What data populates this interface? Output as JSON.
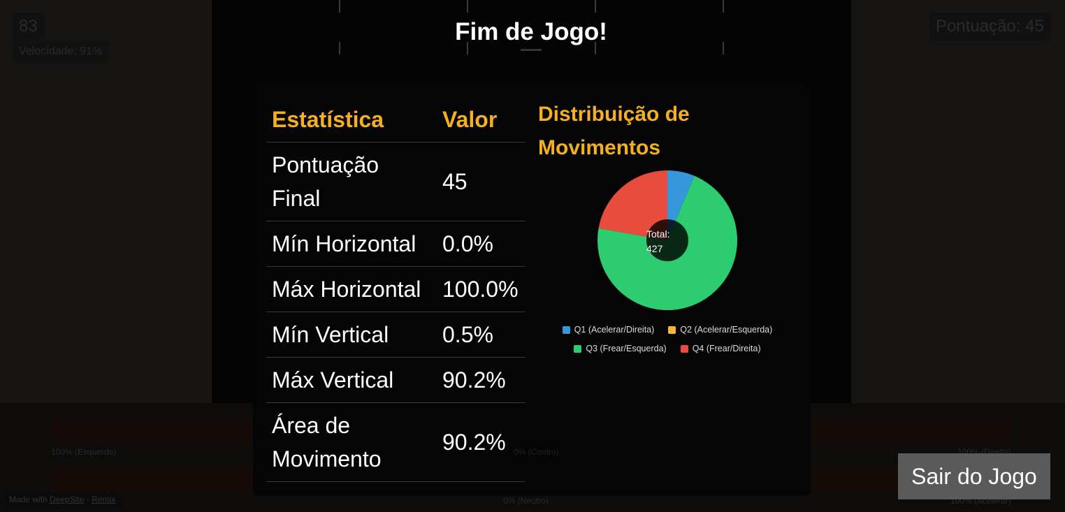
{
  "background": {
    "timer": "83",
    "speed": "Velocidade: 91%",
    "score": "Pontuação: 45",
    "labels": {
      "left": "100% (Esquerda)",
      "center": "0% (Centro)",
      "right": "100% (Direita)",
      "neutral": "0% (Neutro)",
      "accel": "100% (Acelerar)"
    },
    "made_with": "Made with",
    "deepsite": "DeepSite",
    "remix": "Remix"
  },
  "modal": {
    "title": "Fim de Jogo!",
    "table": {
      "headers": [
        "Estatística",
        "Valor"
      ],
      "rows": [
        [
          "Pontuação Final",
          "45"
        ],
        [
          "Mín Horizontal",
          "0.0%"
        ],
        [
          "Máx Horizontal",
          "100.0%"
        ],
        [
          "Mín Vertical",
          "0.5%"
        ],
        [
          "Máx Vertical",
          "90.2%"
        ],
        [
          "Área de Movimento",
          "90.2%"
        ]
      ]
    },
    "exit_button": "Sair do Jogo"
  },
  "chart_data": {
    "type": "doughnut",
    "title": "Distribuição de Movimentos",
    "center_label": "Total:",
    "center_value": "427",
    "categories": [
      "Q1 (Acelerar/Direita)",
      "Q2 (Acelerar/Esquerda)",
      "Q3 (Frear/Esquerda)",
      "Q4 (Frear/Direita)"
    ],
    "values": [
      27,
      0,
      305,
      95
    ],
    "colors": [
      "#3498db",
      "#f5b82e",
      "#2ecc71",
      "#e74c3c"
    ],
    "legend": "bottom"
  }
}
